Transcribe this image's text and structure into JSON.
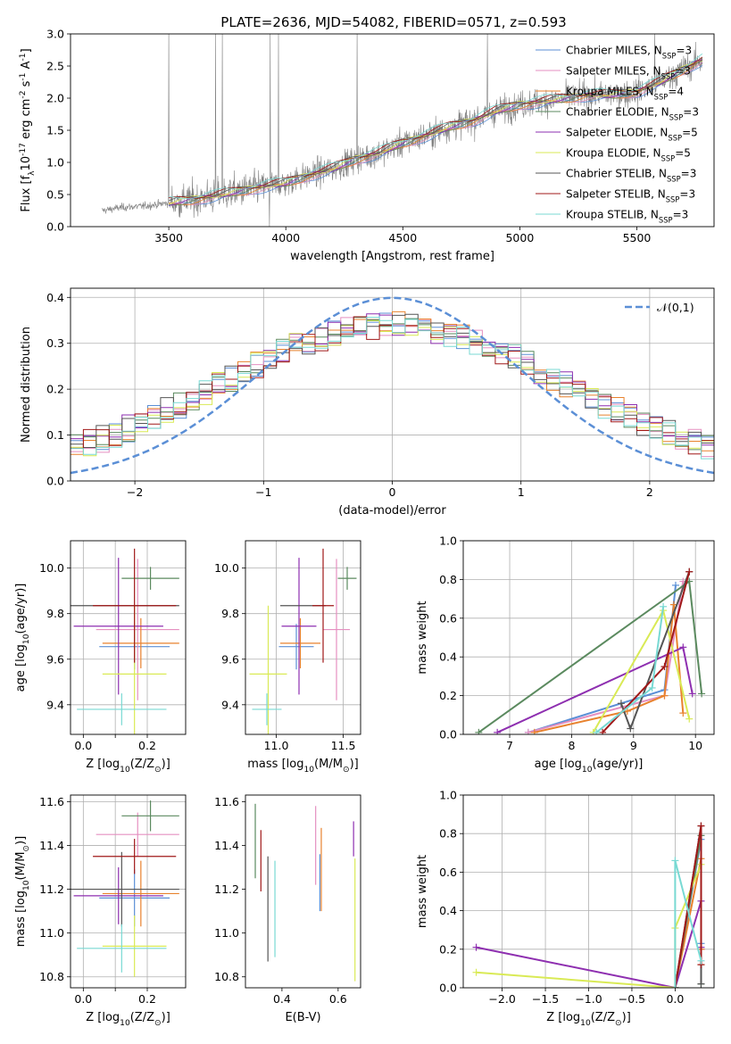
{
  "figure": {
    "title": "PLATE=2636, MJD=54082, FIBERID=0571, z=0.593"
  },
  "colors": {
    "Chabrier MILES": "#5b8fd6",
    "Salpeter MILES": "#e58fc0",
    "Kroupa MILES": "#e8822e",
    "Chabrier ELODIE": "#5b8a5f",
    "Salpeter ELODIE": "#8e2fb0",
    "Kroupa ELODIE": "#d9ea55",
    "Chabrier STELIB": "#555555",
    "Salpeter STELIB": "#a01818",
    "Kroupa STELIB": "#78d9d3",
    "normal_curve": "#5b8fd6",
    "grid": "#b0b0b0"
  },
  "chart_data": [
    {
      "id": "spectrum",
      "type": "line",
      "title": "PLATE=2636, MJD=54082, FIBERID=0571, z=0.593",
      "xlabel": "wavelength [Angstrom, rest frame]",
      "ylabel": "Flux [f$_\\lambda$10$^{-17}$ erg cm$^{-2}$ s$^{-1}$ A$^{-1}$]",
      "xlim": [
        3080,
        5830
      ],
      "ylim": [
        0,
        3.0
      ],
      "xticks": [
        3500,
        4000,
        4500,
        5000,
        5500
      ],
      "yticks": [
        0.0,
        0.5,
        1.0,
        1.5,
        2.0,
        2.5,
        3.0
      ],
      "grid": false,
      "legend_position": "top-right",
      "legend": [
        "Chabrier MILES, N$_{SSP}$=3",
        "Salpeter MILES, N$_{SSP}$=3",
        "Kroupa MILES, N$_{SSP}$=4",
        "Chabrier ELODIE, N$_{SSP}$=3",
        "Salpeter ELODIE, N$_{SSP}$=5",
        "Kroupa ELODIE, N$_{SSP}$=5",
        "Chabrier STELIB, N$_{SSP}$=3",
        "Salpeter STELIB, N$_{SSP}$=3",
        "Kroupa STELIB, N$_{SSP}$=3"
      ],
      "data_continuum": {
        "x": [
          3215,
          3300,
          3400,
          3500,
          3600,
          3700,
          3800,
          3900,
          4000,
          4100,
          4200,
          4300,
          4400,
          4500,
          4600,
          4700,
          4800,
          4900,
          5000,
          5100,
          5200,
          5300,
          5400,
          5500,
          5600,
          5700,
          5780
        ],
        "y": [
          0.25,
          0.3,
          0.32,
          0.37,
          0.42,
          0.48,
          0.55,
          0.62,
          0.68,
          0.8,
          0.9,
          1.05,
          1.15,
          1.3,
          1.42,
          1.55,
          1.65,
          1.8,
          1.9,
          1.95,
          2.0,
          2.05,
          2.05,
          2.1,
          2.25,
          2.45,
          2.6
        ]
      }
    },
    {
      "id": "residuals",
      "type": "line",
      "xlabel": "(data-model)/error",
      "ylabel": "Normed distribution",
      "xlim": [
        -2.5,
        2.5
      ],
      "ylim": [
        0,
        0.42
      ],
      "xticks": [
        -2,
        -1,
        0,
        1,
        2
      ],
      "yticks": [
        0.0,
        0.1,
        0.2,
        0.3,
        0.4
      ],
      "grid": true,
      "legend_position": "top-right",
      "legend": [
        "$\\mathcal{N}(0,1)$"
      ],
      "normal": {
        "mean": 0,
        "sigma": 1
      },
      "histogram_bins": {
        "start": -2.5,
        "width": 0.1,
        "count": 50
      }
    },
    {
      "id": "Z_age",
      "type": "scatter",
      "xlabel": "Z [log$_{10}$(Z/Z$_\\odot$)]",
      "ylabel": "age  [log$_{10}$(age/yr)]",
      "xlim": [
        -0.04,
        0.32
      ],
      "ylim": [
        9.27,
        10.12
      ],
      "xticks": [
        0.0,
        0.1,
        0.2
      ],
      "yticks": [
        9.4,
        9.6,
        9.8,
        10.0
      ],
      "xticklabels": [
        "0.0",
        "",
        "0.2"
      ],
      "grid": true,
      "points": [
        {
          "series": "Chabrier MILES",
          "x": 0.16,
          "y": 9.655,
          "xerr": 0.11,
          "yerr": 0.1
        },
        {
          "series": "Salpeter MILES",
          "x": 0.17,
          "y": 9.73,
          "xerr": 0.13,
          "yerr": 0.31
        },
        {
          "series": "Kroupa MILES",
          "x": 0.18,
          "y": 9.67,
          "xerr": 0.12,
          "yerr": 0.11
        },
        {
          "series": "Chabrier ELODIE",
          "x": 0.21,
          "y": 9.955,
          "xerr": 0.09,
          "yerr": 0.05
        },
        {
          "series": "Salpeter ELODIE",
          "x": 0.11,
          "y": 9.745,
          "xerr": 0.14,
          "yerr": 0.3
        },
        {
          "series": "Kroupa ELODIE",
          "x": 0.16,
          "y": 9.535,
          "xerr": 0.1,
          "yerr": 0.3
        },
        {
          "series": "Chabrier STELIB",
          "x": 0.12,
          "y": 9.835,
          "xerr": 0.18,
          "yerr": 0.0
        },
        {
          "series": "Salpeter STELIB",
          "x": 0.16,
          "y": 9.835,
          "xerr": 0.13,
          "yerr": 0.25
        },
        {
          "series": "Kroupa STELIB",
          "x": 0.12,
          "y": 9.38,
          "xerr": 0.14,
          "yerr": 0.07
        }
      ]
    },
    {
      "id": "mass_age",
      "type": "scatter",
      "xlabel": "mass [log$_{10}$(M/M$_\\odot$)]",
      "ylabel": "",
      "xlim": [
        10.77,
        11.63
      ],
      "ylim": [
        9.27,
        10.12
      ],
      "xticks": [
        11.0,
        11.5
      ],
      "yticks": [
        9.4,
        9.6,
        9.8,
        10.0
      ],
      "grid": true,
      "points": [
        {
          "series": "Chabrier MILES",
          "x": 11.15,
          "y": 9.655,
          "xerr": 0.13,
          "yerr": 0.1
        },
        {
          "series": "Salpeter MILES",
          "x": 11.45,
          "y": 9.73,
          "xerr": 0.1,
          "yerr": 0.31
        },
        {
          "series": "Kroupa MILES",
          "x": 11.18,
          "y": 9.67,
          "xerr": 0.15,
          "yerr": 0.11
        },
        {
          "series": "Chabrier ELODIE",
          "x": 11.53,
          "y": 9.955,
          "xerr": 0.07,
          "yerr": 0.05
        },
        {
          "series": "Salpeter ELODIE",
          "x": 11.17,
          "y": 9.745,
          "xerr": 0.13,
          "yerr": 0.3
        },
        {
          "series": "Kroupa ELODIE",
          "x": 10.94,
          "y": 9.535,
          "xerr": 0.14,
          "yerr": 0.3
        },
        {
          "series": "Chabrier STELIB",
          "x": 11.2,
          "y": 9.835,
          "xerr": 0.17,
          "yerr": 0.0
        },
        {
          "series": "Salpeter STELIB",
          "x": 11.35,
          "y": 9.835,
          "xerr": 0.08,
          "yerr": 0.25
        },
        {
          "series": "Kroupa STELIB",
          "x": 10.93,
          "y": 9.38,
          "xerr": 0.11,
          "yerr": 0.07
        }
      ]
    },
    {
      "id": "age_weight",
      "type": "line",
      "xlabel": "age  [log$_{10}$(age/yr)]",
      "ylabel": "mass weight",
      "xlim": [
        6.25,
        10.3
      ],
      "ylim": [
        0,
        1.0
      ],
      "xticks": [
        7,
        8,
        9,
        10
      ],
      "yticks": [
        0.0,
        0.2,
        0.4,
        0.6,
        0.8,
        1.0
      ],
      "grid": true,
      "series": [
        {
          "name": "Chabrier MILES",
          "x": [
            7.3,
            9.5,
            9.68
          ],
          "y": [
            0.01,
            0.23,
            0.77
          ]
        },
        {
          "name": "Salpeter MILES",
          "x": [
            7.3,
            9.5,
            9.8
          ],
          "y": [
            0.01,
            0.2,
            0.79
          ]
        },
        {
          "name": "Kroupa MILES",
          "x": [
            7.4,
            8.9,
            9.5,
            9.65,
            9.8
          ],
          "y": [
            0.01,
            0.12,
            0.2,
            0.67,
            0.11
          ]
        },
        {
          "name": "Chabrier ELODIE",
          "x": [
            6.5,
            9.9,
            10.1
          ],
          "y": [
            0.01,
            0.79,
            0.21
          ]
        },
        {
          "name": "Salpeter ELODIE",
          "x": [
            6.8,
            9.8,
            9.95
          ],
          "y": [
            0.01,
            0.45,
            0.21
          ]
        },
        {
          "name": "Kroupa ELODIE",
          "x": [
            8.35,
            9.48,
            9.9
          ],
          "y": [
            0.01,
            0.64,
            0.08
          ]
        },
        {
          "name": "Chabrier STELIB",
          "x": [
            8.8,
            8.95,
            9.9
          ],
          "y": [
            0.16,
            0.03,
            0.84
          ]
        },
        {
          "name": "Salpeter STELIB",
          "x": [
            8.5,
            9.5,
            9.9
          ],
          "y": [
            0.01,
            0.35,
            0.84
          ]
        },
        {
          "name": "Kroupa STELIB",
          "x": [
            8.4,
            9.3,
            9.48
          ],
          "y": [
            0.01,
            0.24,
            0.66
          ]
        }
      ]
    },
    {
      "id": "Z_mass",
      "type": "scatter",
      "xlabel": "Z [log$_{10}$(Z/Z$_\\odot$)]",
      "ylabel": "mass [log$_{10}$(M/M$_\\odot$)]",
      "xlim": [
        -0.04,
        0.32
      ],
      "ylim": [
        10.75,
        11.63
      ],
      "xticks": [
        0.0,
        0.1,
        0.2
      ],
      "yticks": [
        10.8,
        11.0,
        11.2,
        11.4,
        11.6
      ],
      "xticklabels": [
        "0.0",
        "",
        "0.2"
      ],
      "grid": true,
      "points": [
        {
          "series": "Chabrier MILES",
          "x": 0.16,
          "y": 11.16,
          "xerr": 0.11,
          "yerr": 0.13
        },
        {
          "series": "Salpeter MILES",
          "x": 0.17,
          "y": 11.45,
          "xerr": 0.13,
          "yerr": 0.1
        },
        {
          "series": "Kroupa MILES",
          "x": 0.18,
          "y": 11.18,
          "xerr": 0.12,
          "yerr": 0.15
        },
        {
          "series": "Chabrier ELODIE",
          "x": 0.21,
          "y": 11.535,
          "xerr": 0.09,
          "yerr": 0.07
        },
        {
          "series": "Salpeter ELODIE",
          "x": 0.11,
          "y": 11.17,
          "xerr": 0.14,
          "yerr": 0.13
        },
        {
          "series": "Kroupa ELODIE",
          "x": 0.16,
          "y": 10.94,
          "xerr": 0.1,
          "yerr": 0.14
        },
        {
          "series": "Chabrier STELIB",
          "x": 0.12,
          "y": 11.2,
          "xerr": 0.18,
          "yerr": 0.17
        },
        {
          "series": "Salpeter STELIB",
          "x": 0.16,
          "y": 11.35,
          "xerr": 0.13,
          "yerr": 0.08
        },
        {
          "series": "Kroupa STELIB",
          "x": 0.12,
          "y": 10.93,
          "xerr": 0.14,
          "yerr": 0.11
        }
      ]
    },
    {
      "id": "ebv_mass",
      "type": "scatter",
      "xlabel": "E(B-V)",
      "ylabel": "",
      "xlim": [
        0.27,
        0.68
      ],
      "ylim": [
        10.75,
        11.63
      ],
      "xticks": [
        0.4,
        0.6
      ],
      "yticks": [
        10.8,
        11.0,
        11.2,
        11.4,
        11.6
      ],
      "grid": false,
      "points": [
        {
          "series": "Chabrier MILES",
          "x": 0.535,
          "y": 11.23,
          "yerr": 0.13
        },
        {
          "series": "Salpeter MILES",
          "x": 0.52,
          "y": 11.4,
          "yerr": 0.18
        },
        {
          "series": "Kroupa MILES",
          "x": 0.54,
          "y": 11.29,
          "yerr": 0.19
        },
        {
          "series": "Chabrier ELODIE",
          "x": 0.305,
          "y": 11.42,
          "yerr": 0.17
        },
        {
          "series": "Salpeter ELODIE",
          "x": 0.655,
          "y": 11.43,
          "yerr": 0.08
        },
        {
          "series": "Kroupa ELODIE",
          "x": 0.66,
          "y": 11.06,
          "yerr": 0.28
        },
        {
          "series": "Chabrier STELIB",
          "x": 0.35,
          "y": 11.11,
          "yerr": 0.24
        },
        {
          "series": "Salpeter STELIB",
          "x": 0.325,
          "y": 11.33,
          "yerr": 0.14
        },
        {
          "series": "Kroupa STELIB",
          "x": 0.375,
          "y": 11.11,
          "yerr": 0.22
        }
      ]
    },
    {
      "id": "Z_weight",
      "type": "line",
      "xlabel": "Z [log$_{10}$(Z/Z$_\\odot$)]",
      "ylabel": "mass weight",
      "xlim": [
        -2.45,
        0.45
      ],
      "ylim": [
        0,
        1.0
      ],
      "xticks": [
        -2.0,
        -1.5,
        -1.0,
        -0.5,
        0.0
      ],
      "yticks": [
        0.0,
        0.2,
        0.4,
        0.6,
        0.8,
        1.0
      ],
      "grid": true,
      "series": [
        {
          "name": "Chabrier MILES",
          "x": [
            0.0,
            0.3,
            0.3
          ],
          "y": [
            0.0,
            0.77,
            0.23
          ]
        },
        {
          "name": "Salpeter MILES",
          "x": [
            0.0,
            0.3,
            0.3
          ],
          "y": [
            0.0,
            0.79,
            0.2
          ]
        },
        {
          "name": "Kroupa MILES",
          "x": [
            0.0,
            0.3,
            0.3,
            0.3
          ],
          "y": [
            0.0,
            0.67,
            0.12,
            0.2
          ]
        },
        {
          "name": "Chabrier ELODIE",
          "x": [
            0.0,
            0.3,
            0.3
          ],
          "y": [
            0.0,
            0.79,
            0.02
          ]
        },
        {
          "name": "Salpeter ELODIE",
          "x": [
            -2.3,
            0.0,
            0.3,
            0.3
          ],
          "y": [
            0.21,
            0.0,
            0.45,
            0.21
          ]
        },
        {
          "name": "Kroupa ELODIE",
          "x": [
            -2.3,
            0.0,
            0.0,
            0.3
          ],
          "y": [
            0.08,
            0.0,
            0.31,
            0.64
          ]
        },
        {
          "name": "Chabrier STELIB",
          "x": [
            0.0,
            0.3,
            0.3
          ],
          "y": [
            0.0,
            0.84,
            0.02
          ]
        },
        {
          "name": "Salpeter STELIB",
          "x": [
            0.0,
            0.3,
            0.3
          ],
          "y": [
            0.0,
            0.84,
            0.12
          ]
        },
        {
          "name": "Kroupa STELIB",
          "x": [
            0.0,
            0.0,
            0.3
          ],
          "y": [
            0.0,
            0.66,
            0.14
          ]
        }
      ]
    }
  ]
}
